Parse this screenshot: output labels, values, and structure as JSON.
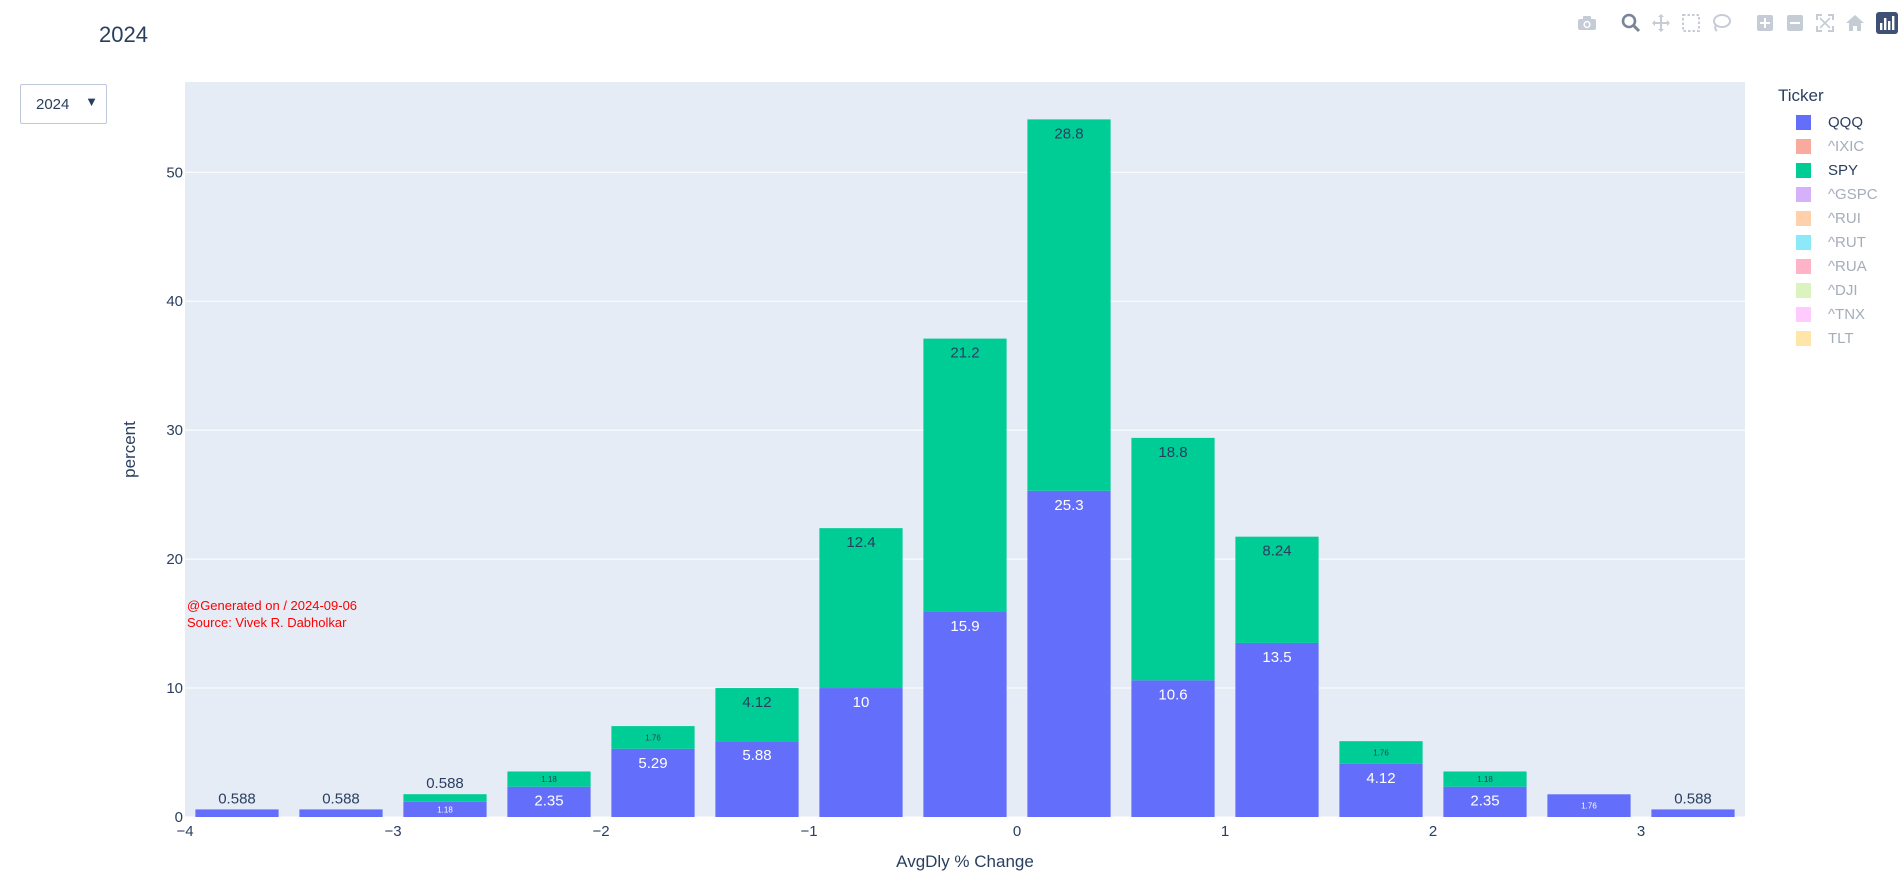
{
  "page_title": "2024",
  "dropdown": {
    "selected": "2024"
  },
  "annotation": {
    "line1": "@Generated on / 2024-09-06",
    "line2": "Source: Vivek R. Dabholkar"
  },
  "legend": {
    "title": "Ticker",
    "items": [
      {
        "name": "QQQ",
        "color": "#636efa",
        "visible": true
      },
      {
        "name": "^IXIC",
        "color": "#EF553B",
        "visible": false
      },
      {
        "name": "SPY",
        "color": "#00cc96",
        "visible": true
      },
      {
        "name": "^GSPC",
        "color": "#ab63fa",
        "visible": false
      },
      {
        "name": "^RUI",
        "color": "#FFA15A",
        "visible": false
      },
      {
        "name": "^RUT",
        "color": "#19d3f3",
        "visible": false
      },
      {
        "name": "^RUA",
        "color": "#FF6692",
        "visible": false
      },
      {
        "name": "^DJI",
        "color": "#B6E880",
        "visible": false
      },
      {
        "name": "^TNX",
        "color": "#FF97FF",
        "visible": false
      },
      {
        "name": "TLT",
        "color": "#FECB52",
        "visible": false
      }
    ]
  },
  "modebar": {
    "icons": [
      "camera-icon",
      "zoom-icon",
      "pan-icon",
      "box-select-icon",
      "lasso-select-icon",
      "zoom-in-icon",
      "zoom-out-icon",
      "autoscale-icon",
      "reset-axes-icon",
      "plotly-logo-icon"
    ]
  },
  "chart_data": {
    "type": "bar",
    "barmode": "stack",
    "title": "",
    "xlabel": "AvgDly % Change",
    "ylabel": "percent",
    "xlim": [
      -4,
      3.5
    ],
    "ylim": [
      0,
      57
    ],
    "xticks": [
      -4,
      -3,
      -2,
      -1,
      0,
      1,
      2,
      3
    ],
    "xtick_labels": [
      "−4",
      "−3",
      "−2",
      "−1",
      "0",
      "1",
      "2",
      "3"
    ],
    "yticks": [
      0,
      10,
      20,
      30,
      40,
      50
    ],
    "bin_width": 0.5,
    "bin_starts": [
      -4,
      -3.5,
      -3,
      -2.5,
      -2,
      -1.5,
      -1,
      -0.5,
      0,
      0.5,
      1,
      1.5,
      2,
      2.5,
      3
    ],
    "series": [
      {
        "name": "QQQ",
        "color": "#636efa",
        "values": [
          0.588,
          0.588,
          1.18,
          2.35,
          5.29,
          5.88,
          10,
          15.9,
          25.3,
          10.6,
          13.5,
          4.12,
          2.35,
          1.76,
          0.588
        ],
        "labels": [
          "0.588",
          "0.588",
          "1.18",
          "2.35",
          "5.29",
          "5.88",
          "10",
          "15.9",
          "25.3",
          "10.6",
          "13.5",
          "4.12",
          "2.35",
          "1.76",
          "0.588"
        ]
      },
      {
        "name": "SPY",
        "color": "#00cc96",
        "values": [
          0,
          0,
          0.588,
          1.18,
          1.76,
          4.12,
          12.4,
          21.2,
          28.8,
          18.8,
          8.24,
          1.76,
          1.18,
          0,
          0
        ],
        "labels": [
          "",
          "",
          "0.588",
          "1.18",
          "1.76",
          "4.12",
          "12.4",
          "21.2",
          "28.8",
          "18.8",
          "8.24",
          "1.76",
          "1.18",
          "",
          ""
        ]
      }
    ],
    "grid": true,
    "legend_position": "right"
  }
}
